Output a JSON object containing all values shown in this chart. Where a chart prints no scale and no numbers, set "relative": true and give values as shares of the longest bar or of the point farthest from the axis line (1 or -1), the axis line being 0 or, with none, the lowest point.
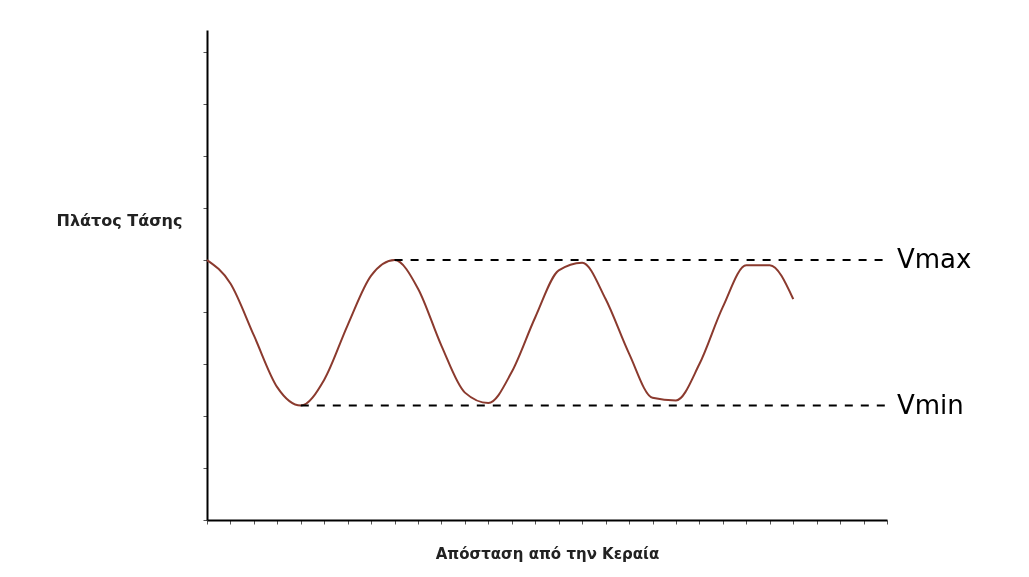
{
  "chart_data": {
    "type": "line",
    "relative": true,
    "xlabel": "Απόσταση από την Κεραία",
    "ylabel": "Πλάτος Τάσης",
    "categories": [
      null,
      null,
      null,
      null,
      null,
      null,
      null,
      null,
      null,
      null,
      null,
      null,
      null,
      null,
      null,
      null,
      null,
      null,
      null,
      null,
      null,
      null,
      null,
      null,
      null,
      null,
      null,
      null,
      null,
      null
    ],
    "series": [
      {
        "color": "#8b3a2e",
        "values": [
          1.0,
          0.91,
          0.71,
          0.51,
          0.44,
          0.54,
          0.75,
          0.94,
          1.0,
          0.89,
          0.67,
          0.49,
          0.45,
          0.57,
          0.78,
          0.96,
          0.99,
          0.85,
          0.64,
          0.47,
          0.46,
          0.6,
          0.82,
          0.98,
          0.98,
          0.85,
          null,
          null,
          null,
          null
        ]
      }
    ],
    "ref_lines": [
      {
        "axis": "y",
        "value": 1.0,
        "label": "Vmax",
        "line_style": "dashed"
      },
      {
        "axis": "y",
        "value": 0.44,
        "label": "Vmin",
        "line_style": "dashed"
      }
    ]
  }
}
